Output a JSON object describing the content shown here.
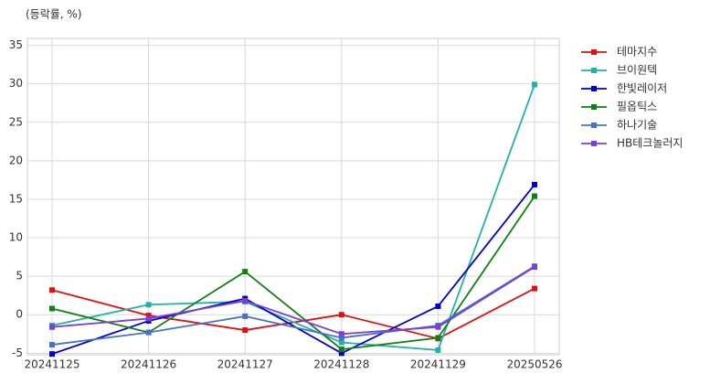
{
  "chart_data": {
    "type": "line",
    "y_label": "(등락률, %)",
    "categories": [
      "20241125",
      "20241126",
      "20241127",
      "20241128",
      "20241129",
      "20250526"
    ],
    "series": [
      {
        "name": "테마지수",
        "color": "#e01010",
        "values": [
          3.2,
          -0.1,
          -2.0,
          0.0,
          -3.1,
          3.4
        ]
      },
      {
        "name": "브이원텍",
        "color": "#20b2aa",
        "values": [
          -1.4,
          1.3,
          1.7,
          -3.6,
          -4.6,
          29.9
        ]
      },
      {
        "name": "한빛레이저",
        "color": "#0000cd",
        "values": [
          -5.1,
          -0.8,
          2.1,
          -5.0,
          1.1,
          16.9
        ]
      },
      {
        "name": "필옵틱스",
        "color": "#108010",
        "values": [
          0.8,
          -2.3,
          5.6,
          -4.5,
          -3.0,
          15.4
        ]
      },
      {
        "name": "하나기술",
        "color": "#4472c4",
        "values": [
          -3.9,
          -2.3,
          -0.2,
          -3.0,
          -1.4,
          6.3
        ]
      },
      {
        "name": "HB테크놀러지",
        "color": "#7b3fd6",
        "values": [
          -1.6,
          -0.5,
          1.8,
          -2.5,
          -1.6,
          6.2
        ]
      }
    ],
    "ylim": [
      -5.2,
      35.9
    ],
    "yticks": [
      -5,
      0,
      5,
      10,
      15,
      20,
      25,
      30,
      35
    ],
    "grid": true,
    "legend": "right"
  }
}
